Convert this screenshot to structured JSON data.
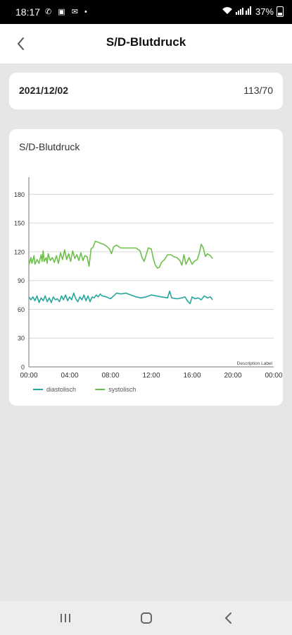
{
  "status_bar": {
    "time": "18:17",
    "battery": "37%"
  },
  "header": {
    "title": "S/D-Blutdruck"
  },
  "reading": {
    "date": "2021/12/02",
    "value": "113/70"
  },
  "chart_card": {
    "title": "S/D-Blutdruck"
  },
  "colors": {
    "diastolisch": "#26a69a",
    "systolisch": "#6cc04a",
    "grid": "#d6d6d6"
  },
  "chart_data": {
    "type": "line",
    "title": "",
    "description_label": "Description Label",
    "x_ticks": [
      "00:00",
      "04:00",
      "08:00",
      "12:00",
      "16:00",
      "20:00",
      "00:00"
    ],
    "y_ticks": [
      "0",
      "30",
      "60",
      "90",
      "120",
      "150",
      "180"
    ],
    "xlim_hours": [
      0,
      24
    ],
    "ylim": [
      0,
      195
    ],
    "grid": true,
    "legend_position": "bottom-left",
    "series": [
      {
        "name": "diastolisch",
        "color": "#26a69a",
        "points": [
          [
            0.0,
            73
          ],
          [
            0.2,
            70
          ],
          [
            0.4,
            73
          ],
          [
            0.6,
            69
          ],
          [
            0.8,
            74
          ],
          [
            1.0,
            67
          ],
          [
            1.2,
            72
          ],
          [
            1.4,
            69
          ],
          [
            1.6,
            74
          ],
          [
            1.8,
            68
          ],
          [
            2.0,
            72
          ],
          [
            2.2,
            67
          ],
          [
            2.4,
            73
          ],
          [
            2.6,
            70
          ],
          [
            2.8,
            71
          ],
          [
            3.0,
            68
          ],
          [
            3.2,
            74
          ],
          [
            3.4,
            70
          ],
          [
            3.6,
            75
          ],
          [
            3.8,
            69
          ],
          [
            4.0,
            73
          ],
          [
            4.2,
            70
          ],
          [
            4.4,
            77
          ],
          [
            4.6,
            71
          ],
          [
            4.8,
            68
          ],
          [
            5.0,
            73
          ],
          [
            5.2,
            70
          ],
          [
            5.4,
            75
          ],
          [
            5.6,
            69
          ],
          [
            5.8,
            74
          ],
          [
            6.0,
            68
          ],
          [
            6.2,
            73
          ],
          [
            6.4,
            72
          ],
          [
            6.6,
            75
          ],
          [
            6.8,
            73
          ],
          [
            7.0,
            76
          ],
          [
            7.2,
            74
          ],
          [
            7.6,
            73
          ],
          [
            8.0,
            71
          ],
          [
            8.3,
            74
          ],
          [
            8.6,
            77
          ],
          [
            9.0,
            76
          ],
          [
            9.5,
            77
          ],
          [
            10.0,
            75
          ],
          [
            10.5,
            73
          ],
          [
            11.0,
            72
          ],
          [
            11.5,
            73
          ],
          [
            12.0,
            75
          ],
          [
            12.5,
            74
          ],
          [
            13.0,
            73
          ],
          [
            13.6,
            72
          ],
          [
            13.8,
            79
          ],
          [
            14.0,
            72
          ],
          [
            14.5,
            71
          ],
          [
            15.0,
            72
          ],
          [
            15.3,
            73
          ],
          [
            15.6,
            68
          ],
          [
            15.8,
            66
          ],
          [
            16.0,
            73
          ],
          [
            16.3,
            71
          ],
          [
            16.6,
            72
          ],
          [
            16.9,
            70
          ],
          [
            17.2,
            74
          ],
          [
            17.5,
            72
          ],
          [
            17.8,
            73
          ],
          [
            18.0,
            70
          ]
        ]
      },
      {
        "name": "systolisch",
        "color": "#6cc04a",
        "points": [
          [
            0.0,
            106
          ],
          [
            0.2,
            114
          ],
          [
            0.3,
            108
          ],
          [
            0.5,
            116
          ],
          [
            0.6,
            107
          ],
          [
            0.8,
            112
          ],
          [
            1.0,
            108
          ],
          [
            1.2,
            117
          ],
          [
            1.3,
            110
          ],
          [
            1.4,
            121
          ],
          [
            1.5,
            110
          ],
          [
            1.7,
            114
          ],
          [
            1.8,
            108
          ],
          [
            1.9,
            118
          ],
          [
            2.1,
            111
          ],
          [
            2.3,
            114
          ],
          [
            2.5,
            109
          ],
          [
            2.7,
            116
          ],
          [
            2.9,
            108
          ],
          [
            3.1,
            119
          ],
          [
            3.3,
            112
          ],
          [
            3.5,
            122
          ],
          [
            3.7,
            112
          ],
          [
            3.9,
            118
          ],
          [
            4.1,
            110
          ],
          [
            4.3,
            121
          ],
          [
            4.5,
            113
          ],
          [
            4.7,
            117
          ],
          [
            4.9,
            111
          ],
          [
            5.1,
            119
          ],
          [
            5.3,
            111
          ],
          [
            5.5,
            116
          ],
          [
            5.7,
            115
          ],
          [
            5.9,
            105
          ],
          [
            6.1,
            123
          ],
          [
            6.3,
            125
          ],
          [
            6.5,
            131
          ],
          [
            6.8,
            130
          ],
          [
            7.0,
            129
          ],
          [
            7.3,
            128
          ],
          [
            7.6,
            126
          ],
          [
            7.9,
            123
          ],
          [
            8.1,
            118
          ],
          [
            8.3,
            125
          ],
          [
            8.6,
            127
          ],
          [
            9.0,
            124
          ],
          [
            9.5,
            124
          ],
          [
            10.0,
            124
          ],
          [
            10.5,
            124
          ],
          [
            10.9,
            121
          ],
          [
            11.1,
            114
          ],
          [
            11.3,
            110
          ],
          [
            11.5,
            117
          ],
          [
            11.7,
            124
          ],
          [
            12.0,
            123
          ],
          [
            12.2,
            113
          ],
          [
            12.4,
            106
          ],
          [
            12.6,
            103
          ],
          [
            12.8,
            104
          ],
          [
            13.0,
            109
          ],
          [
            13.3,
            112
          ],
          [
            13.6,
            117
          ],
          [
            13.9,
            117
          ],
          [
            14.2,
            115
          ],
          [
            14.5,
            114
          ],
          [
            14.8,
            111
          ],
          [
            15.0,
            106
          ],
          [
            15.2,
            117
          ],
          [
            15.4,
            107
          ],
          [
            15.7,
            114
          ],
          [
            16.0,
            107
          ],
          [
            16.2,
            110
          ],
          [
            16.5,
            112
          ],
          [
            16.7,
            118
          ],
          [
            16.9,
            128
          ],
          [
            17.1,
            124
          ],
          [
            17.3,
            115
          ],
          [
            17.5,
            118
          ],
          [
            17.8,
            116
          ],
          [
            18.0,
            113
          ]
        ]
      }
    ]
  },
  "nav_bar": {
    "recents": "recents-icon",
    "home": "home-icon",
    "back": "back-icon"
  }
}
